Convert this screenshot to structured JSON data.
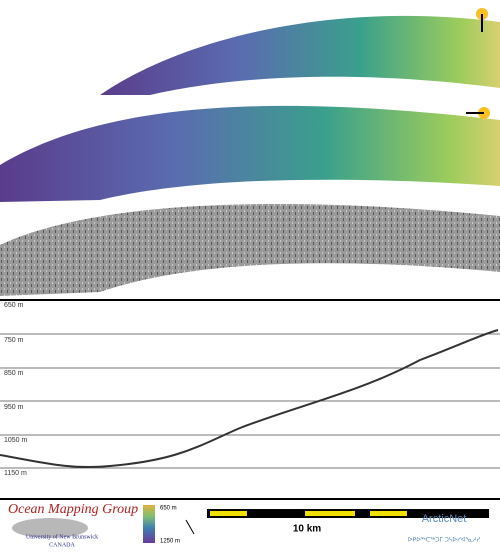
{
  "profile": {
    "depth_labels": [
      "650 m",
      "750 m",
      "850 m",
      "950 m",
      "1050 m",
      "1150 m"
    ]
  },
  "footer": {
    "group": "Ocean Mapping Group",
    "university": "University of New Brunswick",
    "country": "CANADA",
    "colorbar_top": "650 m",
    "colorbar_bottom": "1250 m",
    "scale": "10 km",
    "network": "ArcticNet",
    "network_syllabics": "ᐅᑭᐅᖅᑕᖅᑐᒥ ᑐᓴᐅᓯᐊᕐᓇᓱᓯ"
  }
}
